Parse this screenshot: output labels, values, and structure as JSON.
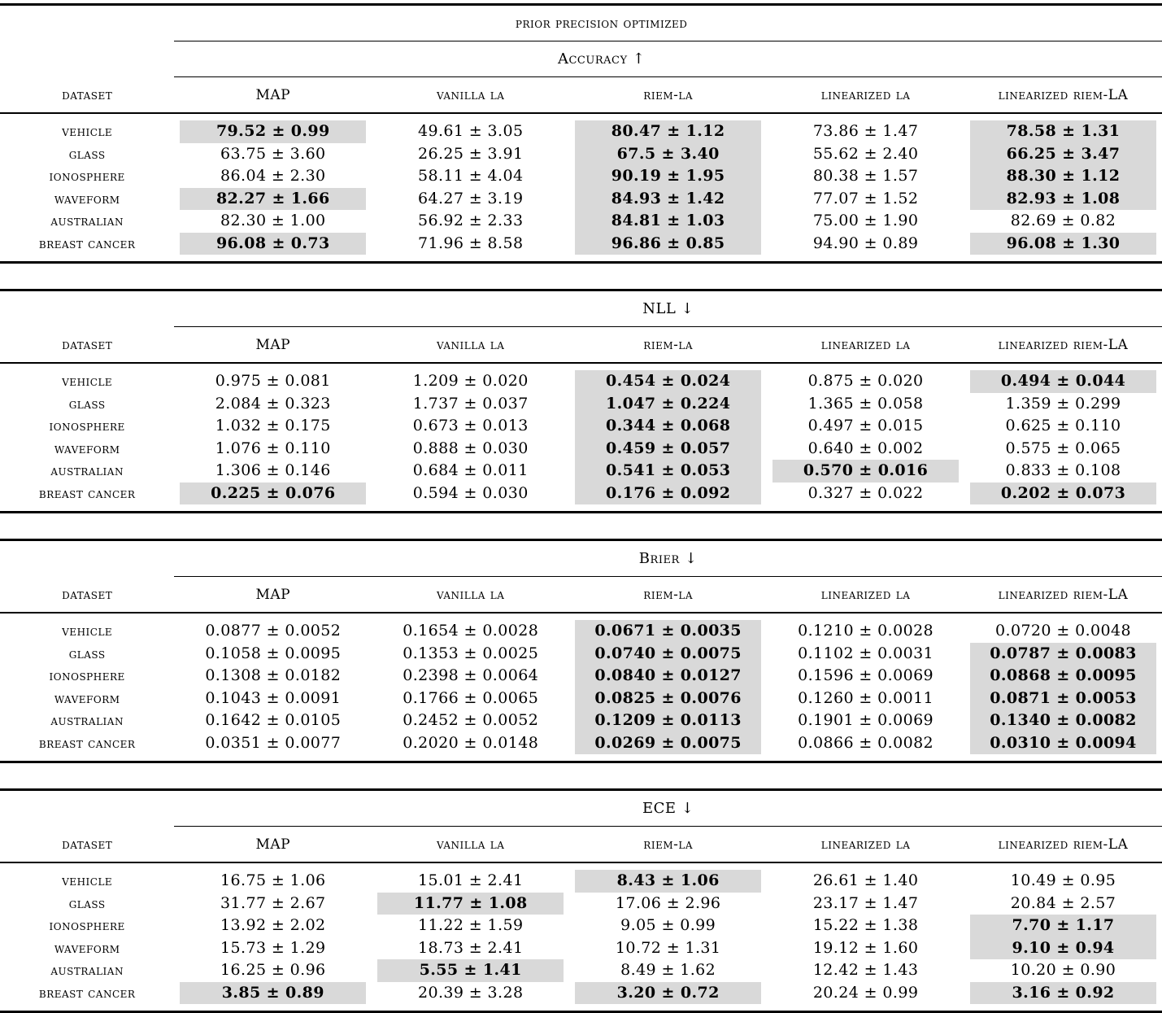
{
  "page": {
    "background_color": "#ffffff",
    "text_color": "#000000",
    "highlight_color": "#d9d9d9"
  },
  "table_group_title": "prior precision optimized",
  "columns": [
    {
      "key": "dataset",
      "label": "dataset"
    },
    {
      "key": "map",
      "label": "MAP"
    },
    {
      "key": "vanilla-la",
      "label": "vanilla la"
    },
    {
      "key": "riem-la",
      "label": "riem-la"
    },
    {
      "key": "linearized-la",
      "label": "linearized la"
    },
    {
      "key": "linearized-riem-la",
      "label": "linearized riem-LA"
    }
  ],
  "sections": [
    {
      "metric": "Accuracy ↑",
      "metric_name": "accuracy",
      "show_group_title": true,
      "rows": [
        {
          "dataset": "vehicle",
          "cells": [
            {
              "text": "79.52 ± 0.99",
              "best": true
            },
            {
              "text": "49.61 ± 3.05",
              "best": false
            },
            {
              "text": "80.47 ± 1.12",
              "best": true
            },
            {
              "text": "73.86 ± 1.47",
              "best": false
            },
            {
              "text": "78.58 ± 1.31",
              "best": true
            }
          ]
        },
        {
          "dataset": "glass",
          "cells": [
            {
              "text": "63.75 ± 3.60",
              "best": false
            },
            {
              "text": "26.25 ± 3.91",
              "best": false
            },
            {
              "text": "67.5 ± 3.40",
              "best": true
            },
            {
              "text": "55.62 ± 2.40",
              "best": false
            },
            {
              "text": "66.25 ± 3.47",
              "best": true
            }
          ]
        },
        {
          "dataset": "ionosphere",
          "cells": [
            {
              "text": "86.04 ± 2.30",
              "best": false
            },
            {
              "text": "58.11 ± 4.04",
              "best": false
            },
            {
              "text": "90.19 ± 1.95",
              "best": true
            },
            {
              "text": "80.38 ± 1.57",
              "best": false
            },
            {
              "text": "88.30 ± 1.12",
              "best": true
            }
          ]
        },
        {
          "dataset": "waveform",
          "cells": [
            {
              "text": "82.27 ± 1.66",
              "best": true
            },
            {
              "text": "64.27 ± 3.19",
              "best": false
            },
            {
              "text": "84.93 ± 1.42",
              "best": true
            },
            {
              "text": "77.07 ± 1.52",
              "best": false
            },
            {
              "text": "82.93 ± 1.08",
              "best": true
            }
          ]
        },
        {
          "dataset": "australian",
          "cells": [
            {
              "text": "82.30 ± 1.00",
              "best": false
            },
            {
              "text": "56.92 ± 2.33",
              "best": false
            },
            {
              "text": "84.81 ± 1.03",
              "best": true
            },
            {
              "text": "75.00 ± 1.90",
              "best": false
            },
            {
              "text": "82.69 ± 0.82",
              "best": false
            }
          ]
        },
        {
          "dataset": "breast cancer",
          "cells": [
            {
              "text": "96.08 ± 0.73",
              "best": true
            },
            {
              "text": "71.96 ± 8.58",
              "best": false
            },
            {
              "text": "96.86 ± 0.85",
              "best": true
            },
            {
              "text": "94.90 ± 0.89",
              "best": false
            },
            {
              "text": "96.08 ± 1.30",
              "best": true
            }
          ]
        }
      ]
    },
    {
      "metric": "NLL ↓",
      "metric_name": "nll",
      "show_group_title": false,
      "rows": [
        {
          "dataset": "vehicle",
          "cells": [
            {
              "text": "0.975 ± 0.081",
              "best": false
            },
            {
              "text": "1.209 ± 0.020",
              "best": false
            },
            {
              "text": "0.454 ± 0.024",
              "best": true
            },
            {
              "text": "0.875 ± 0.020",
              "best": false
            },
            {
              "text": "0.494 ± 0.044",
              "best": true
            }
          ]
        },
        {
          "dataset": "glass",
          "cells": [
            {
              "text": "2.084 ± 0.323",
              "best": false
            },
            {
              "text": "1.737 ± 0.037",
              "best": false
            },
            {
              "text": "1.047 ± 0.224",
              "best": true
            },
            {
              "text": "1.365 ± 0.058",
              "best": false
            },
            {
              "text": "1.359 ± 0.299",
              "best": false
            }
          ]
        },
        {
          "dataset": "ionosphere",
          "cells": [
            {
              "text": "1.032 ± 0.175",
              "best": false
            },
            {
              "text": "0.673 ± 0.013",
              "best": false
            },
            {
              "text": "0.344 ± 0.068",
              "best": true
            },
            {
              "text": "0.497 ± 0.015",
              "best": false
            },
            {
              "text": "0.625 ± 0.110",
              "best": false
            }
          ]
        },
        {
          "dataset": "waveform",
          "cells": [
            {
              "text": "1.076 ± 0.110",
              "best": false
            },
            {
              "text": "0.888 ± 0.030",
              "best": false
            },
            {
              "text": "0.459 ± 0.057",
              "best": true
            },
            {
              "text": "0.640 ± 0.002",
              "best": false
            },
            {
              "text": "0.575 ± 0.065",
              "best": false
            }
          ]
        },
        {
          "dataset": "australian",
          "cells": [
            {
              "text": "1.306 ± 0.146",
              "best": false
            },
            {
              "text": "0.684 ± 0.011",
              "best": false
            },
            {
              "text": "0.541 ± 0.053",
              "best": true
            },
            {
              "text": "0.570 ± 0.016",
              "best": true
            },
            {
              "text": "0.833 ± 0.108",
              "best": false
            }
          ]
        },
        {
          "dataset": "breast cancer",
          "cells": [
            {
              "text": "0.225 ± 0.076",
              "best": true
            },
            {
              "text": "0.594 ± 0.030",
              "best": false
            },
            {
              "text": "0.176 ± 0.092",
              "best": true
            },
            {
              "text": "0.327 ± 0.022",
              "best": false
            },
            {
              "text": "0.202 ± 0.073",
              "best": true
            }
          ]
        }
      ]
    },
    {
      "metric": "Brier ↓",
      "metric_name": "brier",
      "show_group_title": false,
      "rows": [
        {
          "dataset": "vehicle",
          "cells": [
            {
              "text": "0.0877 ± 0.0052",
              "best": false
            },
            {
              "text": "0.1654 ± 0.0028",
              "best": false
            },
            {
              "text": "0.0671 ± 0.0035",
              "best": true
            },
            {
              "text": "0.1210 ± 0.0028",
              "best": false
            },
            {
              "text": "0.0720 ± 0.0048",
              "best": false
            }
          ]
        },
        {
          "dataset": "glass",
          "cells": [
            {
              "text": "0.1058 ± 0.0095",
              "best": false
            },
            {
              "text": "0.1353 ± 0.0025",
              "best": false
            },
            {
              "text": "0.0740 ± 0.0075",
              "best": true
            },
            {
              "text": "0.1102 ± 0.0031",
              "best": false
            },
            {
              "text": "0.0787 ± 0.0083",
              "best": true
            }
          ]
        },
        {
          "dataset": "ionosphere",
          "cells": [
            {
              "text": "0.1308 ± 0.0182",
              "best": false
            },
            {
              "text": "0.2398 ± 0.0064",
              "best": false
            },
            {
              "text": "0.0840 ± 0.0127",
              "best": true
            },
            {
              "text": "0.1596 ± 0.0069",
              "best": false
            },
            {
              "text": "0.0868 ± 0.0095",
              "best": true
            }
          ]
        },
        {
          "dataset": "waveform",
          "cells": [
            {
              "text": "0.1043 ± 0.0091",
              "best": false
            },
            {
              "text": "0.1766 ± 0.0065",
              "best": false
            },
            {
              "text": "0.0825 ± 0.0076",
              "best": true
            },
            {
              "text": "0.1260 ± 0.0011",
              "best": false
            },
            {
              "text": "0.0871 ± 0.0053",
              "best": true
            }
          ]
        },
        {
          "dataset": "australian",
          "cells": [
            {
              "text": "0.1642 ± 0.0105",
              "best": false
            },
            {
              "text": "0.2452 ± 0.0052",
              "best": false
            },
            {
              "text": "0.1209 ± 0.0113",
              "best": true
            },
            {
              "text": "0.1901 ± 0.0069",
              "best": false
            },
            {
              "text": "0.1340 ± 0.0082",
              "best": true
            }
          ]
        },
        {
          "dataset": "breast cancer",
          "cells": [
            {
              "text": "0.0351 ± 0.0077",
              "best": false
            },
            {
              "text": "0.2020 ± 0.0148",
              "best": false
            },
            {
              "text": "0.0269 ± 0.0075",
              "best": true
            },
            {
              "text": "0.0866 ± 0.0082",
              "best": false
            },
            {
              "text": "0.0310 ± 0.0094",
              "best": true
            }
          ]
        }
      ]
    },
    {
      "metric": "ECE ↓",
      "metric_name": "ece",
      "show_group_title": false,
      "rows": [
        {
          "dataset": "vehicle",
          "cells": [
            {
              "text": "16.75 ± 1.06",
              "best": false
            },
            {
              "text": "15.01 ± 2.41",
              "best": false
            },
            {
              "text": "8.43 ± 1.06",
              "best": true
            },
            {
              "text": "26.61 ± 1.40",
              "best": false
            },
            {
              "text": "10.49 ± 0.95",
              "best": false
            }
          ]
        },
        {
          "dataset": "glass",
          "cells": [
            {
              "text": "31.77 ± 2.67",
              "best": false
            },
            {
              "text": "11.77 ± 1.08",
              "best": true
            },
            {
              "text": "17.06 ± 2.96",
              "best": false
            },
            {
              "text": "23.17 ± 1.47",
              "best": false
            },
            {
              "text": "20.84 ± 2.57",
              "best": false
            }
          ]
        },
        {
          "dataset": "ionosphere",
          "cells": [
            {
              "text": "13.92 ± 2.02",
              "best": false
            },
            {
              "text": "11.22 ± 1.59",
              "best": false
            },
            {
              "text": "9.05 ± 0.99",
              "best": false
            },
            {
              "text": "15.22 ± 1.38",
              "best": false
            },
            {
              "text": "7.70 ± 1.17",
              "best": true
            }
          ]
        },
        {
          "dataset": "waveform",
          "cells": [
            {
              "text": "15.73 ± 1.29",
              "best": false
            },
            {
              "text": "18.73 ± 2.41",
              "best": false
            },
            {
              "text": "10.72 ± 1.31",
              "best": false
            },
            {
              "text": "19.12 ± 1.60",
              "best": false
            },
            {
              "text": "9.10 ± 0.94",
              "best": true
            }
          ]
        },
        {
          "dataset": "australian",
          "cells": [
            {
              "text": "16.25 ± 0.96",
              "best": false
            },
            {
              "text": "5.55 ± 1.41",
              "best": true
            },
            {
              "text": "8.49 ± 1.62",
              "best": false
            },
            {
              "text": "12.42 ± 1.43",
              "best": false
            },
            {
              "text": "10.20 ± 0.90",
              "best": false
            }
          ]
        },
        {
          "dataset": "breast cancer",
          "cells": [
            {
              "text": "3.85 ± 0.89",
              "best": true
            },
            {
              "text": "20.39 ± 3.28",
              "best": false
            },
            {
              "text": "3.20 ± 0.72",
              "best": true
            },
            {
              "text": "20.24 ± 0.99",
              "best": false
            },
            {
              "text": "3.16 ± 0.92",
              "best": true
            }
          ]
        }
      ]
    }
  ]
}
